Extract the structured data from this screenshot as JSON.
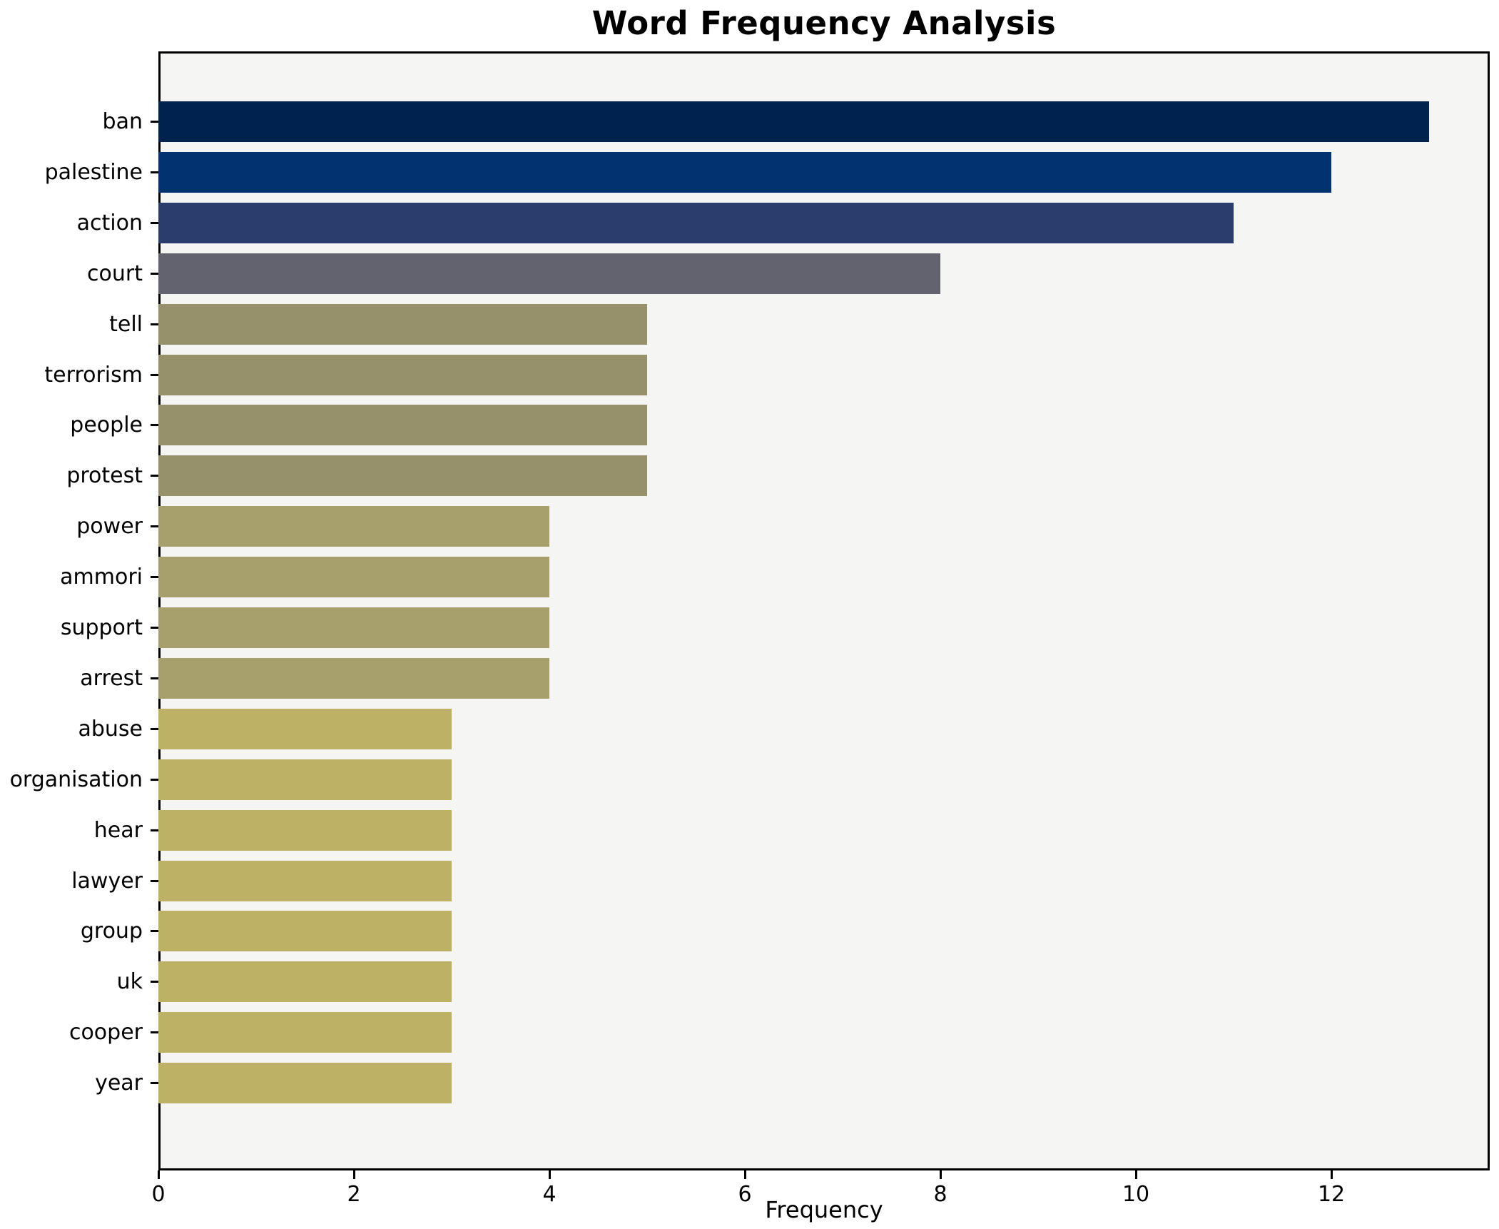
{
  "title": "Word Frequency Analysis",
  "chart_data": {
    "type": "bar",
    "orientation": "horizontal",
    "title": "Word Frequency Analysis",
    "xlabel": "Frequency",
    "ylabel": "",
    "categories": [
      "ban",
      "palestine",
      "action",
      "court",
      "tell",
      "terrorism",
      "people",
      "protest",
      "power",
      "ammori",
      "support",
      "arrest",
      "abuse",
      "organisation",
      "hear",
      "lawyer",
      "group",
      "uk",
      "cooper",
      "year"
    ],
    "values": [
      13,
      12,
      11,
      8,
      5,
      5,
      5,
      5,
      4,
      4,
      4,
      4,
      3,
      3,
      3,
      3,
      3,
      3,
      3,
      3
    ],
    "bar_colors": [
      "#00224e",
      "#023370",
      "#2a3d6d",
      "#62636f",
      "#96916b",
      "#96916b",
      "#96916b",
      "#96916b",
      "#a8a06c",
      "#a8a06c",
      "#a8a06c",
      "#a8a06c",
      "#bcb165",
      "#bcb165",
      "#bcb165",
      "#bcb165",
      "#bcb165",
      "#bcb165",
      "#bcb165",
      "#bcb165"
    ],
    "xlim": [
      0,
      13.62
    ],
    "xticks": [
      0,
      2,
      4,
      6,
      8,
      10,
      12
    ],
    "grid": false,
    "legend": "none",
    "plot_bg": "#f5f5f4",
    "figure_bg": "#ffffff"
  }
}
